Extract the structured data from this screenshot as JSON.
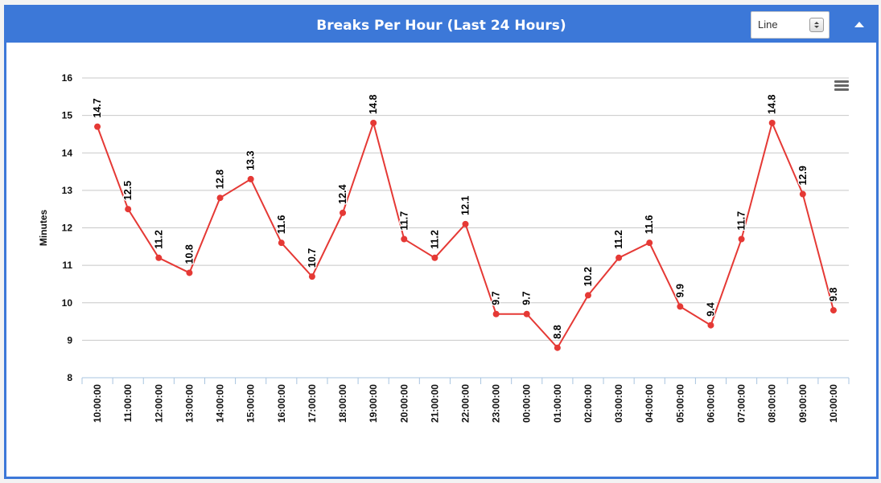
{
  "header": {
    "title": "Breaks Per Hour (Last 24 Hours)",
    "chart_type_select": "Line"
  },
  "colors": {
    "header_bg": "#3c78d8",
    "series": "#e53935",
    "grid": "#c8c8c8"
  },
  "icons": {
    "collapse": "chevron-up-icon",
    "menu": "hamburger-menu-icon",
    "select": "updown-arrows-icon"
  },
  "chart_data": {
    "type": "line",
    "title": "",
    "xlabel": "",
    "ylabel": "Minutes",
    "ylim": [
      8,
      16
    ],
    "yticks": [
      8,
      9,
      10,
      11,
      12,
      13,
      14,
      15,
      16
    ],
    "grid": true,
    "categories": [
      "10:00:00",
      "11:00:00",
      "12:00:00",
      "13:00:00",
      "14:00:00",
      "15:00:00",
      "16:00:00",
      "17:00:00",
      "18:00:00",
      "19:00:00",
      "20:00:00",
      "21:00:00",
      "22:00:00",
      "23:00:00",
      "00:00:00",
      "01:00:00",
      "02:00:00",
      "03:00:00",
      "04:00:00",
      "05:00:00",
      "06:00:00",
      "07:00:00",
      "08:00:00",
      "09:00:00",
      "10:00:00"
    ],
    "series": [
      {
        "values": [
          14.7,
          12.5,
          11.2,
          10.8,
          12.8,
          13.3,
          11.6,
          10.7,
          12.4,
          14.8,
          11.7,
          11.2,
          12.1,
          9.7,
          9.7,
          8.8,
          10.2,
          11.2,
          11.6,
          9.9,
          9.4,
          11.7,
          14.8,
          12.9,
          9.8
        ]
      }
    ]
  }
}
